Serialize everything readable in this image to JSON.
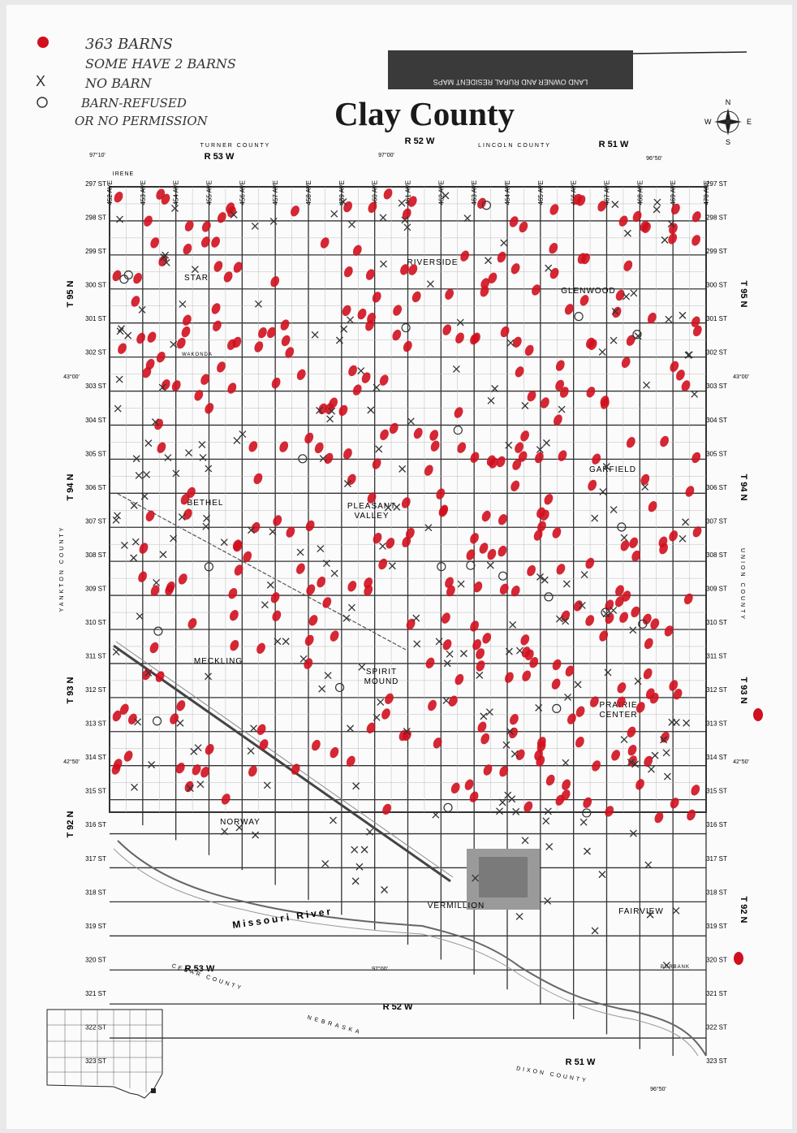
{
  "legend": {
    "dot_text_1": "363 BARNS",
    "dot_text_2": "SOME HAVE 2 BARNS",
    "x_text": "NO BARN",
    "circle_text_1": "BARN-REFUSED",
    "circle_text_2": "OR NO PERMISSION"
  },
  "banner": "LAND OWNER AND RURAL RESIDENT MAPS",
  "title": "Clay County",
  "compass": {
    "n": "N",
    "s": "S",
    "e": "E",
    "w": "W"
  },
  "borders": {
    "north": "TURNER COUNTY",
    "north2": "LINCOLN COUNTY",
    "west": "YANKTON COUNTY",
    "east": "UNION COUNTY",
    "southwest": "CEDAR COUNTY",
    "south": "DIXON COUNTY",
    "state": "NEBRASKA"
  },
  "ranges": {
    "r53": "R 53 W",
    "r52": "R 52 W",
    "r51": "R 51 W"
  },
  "townships": [
    "T 95 N",
    "T 94 N",
    "T 93 N",
    "T 92 N"
  ],
  "coords": {
    "lon_w": "97°10'",
    "lon_m": "97°00'",
    "lon_e": "96°50'",
    "lat_n": "43°00'",
    "lat_s": "42°50'"
  },
  "avenues": [
    "452 AVE",
    "453 AVE",
    "454 AVE",
    "455 AVE",
    "456 AVE",
    "457 AVE",
    "458 AVE",
    "459 AVE",
    "460 AVE",
    "461 AVE",
    "462 AVE",
    "463 AVE",
    "464 AVE",
    "465 AVE",
    "466 AVE",
    "467 AVE",
    "468 AVE",
    "469 AVE",
    "470 AVE"
  ],
  "streets": [
    "297 ST",
    "298 ST",
    "299 ST",
    "300 ST",
    "301 ST",
    "302 ST",
    "303 ST",
    "304 ST",
    "305 ST",
    "306 ST",
    "307 ST",
    "308 ST",
    "309 ST",
    "310 ST",
    "311 ST",
    "312 ST",
    "313 ST",
    "314 ST",
    "315 ST",
    "316 ST",
    "317 ST",
    "318 ST",
    "319 ST",
    "320 ST",
    "321 ST",
    "322 ST",
    "323 ST"
  ],
  "places": [
    "IRENE",
    "STAR",
    "WAKONDA",
    "RIVERSIDE",
    "GLENWOOD",
    "GARFIELD",
    "BETHEL",
    "PLEASANT VALLEY",
    "MECKLING",
    "SPIRIT MOUND",
    "PRAIRIE CENTER",
    "NORWAY",
    "VERMILLION",
    "FAIRVIEW",
    "BURBANK"
  ],
  "river": "Missouri River",
  "map_marks": {
    "barn_color": "#d0101e",
    "barn_count": 363,
    "note": "Red dots = barns, X = no barn, circle = refused"
  }
}
